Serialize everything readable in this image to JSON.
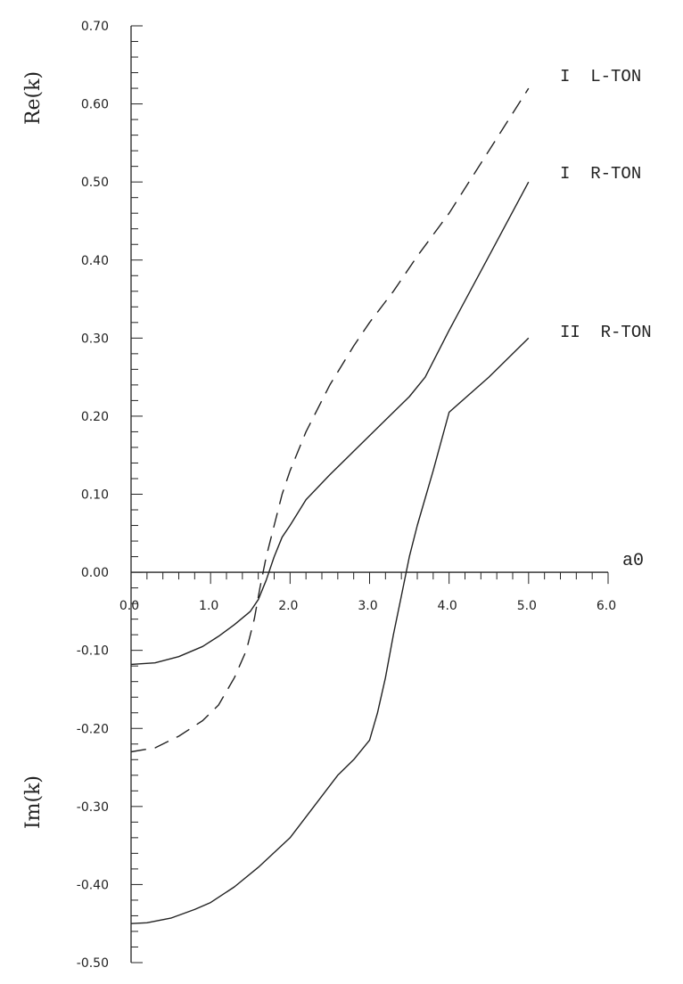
{
  "chart_data": {
    "type": "line",
    "ylabel_top": "Re(k)",
    "ylabel_bottom": "Im(k)",
    "xlabel": "a0",
    "xlim": [
      0,
      6
    ],
    "ylim": [
      -0.5,
      0.7
    ],
    "xticks": [
      "0.0",
      "1.0",
      "2.0",
      "3.0",
      "4.0",
      "5.0",
      "6.0"
    ],
    "yticks": [
      "0.70",
      "0.60",
      "0.50",
      "0.40",
      "0.30",
      "0.20",
      "0.10",
      "0.00",
      "-0.10",
      "-0.20",
      "-0.30",
      "-0.40",
      "-0.50"
    ],
    "grid": false,
    "colors": {
      "line": "#222222",
      "axis": "#222222"
    },
    "series": [
      {
        "name": "I L-TON",
        "style": "dashed",
        "x": [
          0.0,
          0.3,
          0.6,
          0.9,
          1.1,
          1.3,
          1.45,
          1.55,
          1.62,
          1.7,
          1.8,
          1.9,
          2.0,
          2.2,
          2.5,
          2.8,
          3.0,
          3.3,
          3.6,
          4.0,
          4.5,
          5.0
        ],
        "y": [
          -0.23,
          -0.225,
          -0.21,
          -0.19,
          -0.17,
          -0.135,
          -0.1,
          -0.06,
          -0.02,
          0.02,
          0.06,
          0.1,
          0.13,
          0.18,
          0.24,
          0.29,
          0.32,
          0.36,
          0.405,
          0.46,
          0.54,
          0.62
        ]
      },
      {
        "name": "I R-TON",
        "style": "solid",
        "x": [
          0.0,
          0.3,
          0.6,
          0.9,
          1.1,
          1.3,
          1.5,
          1.6,
          1.7,
          1.8,
          1.9,
          2.0,
          2.2,
          2.5,
          2.8,
          3.2,
          3.5,
          3.7,
          4.0,
          4.5,
          5.0
        ],
        "y": [
          -0.118,
          -0.116,
          -0.108,
          -0.095,
          -0.082,
          -0.067,
          -0.05,
          -0.035,
          -0.01,
          0.02,
          0.045,
          0.06,
          0.093,
          0.125,
          0.155,
          0.195,
          0.225,
          0.25,
          0.31,
          0.405,
          0.5
        ]
      },
      {
        "name": "II R-TON",
        "style": "solid",
        "x": [
          0.0,
          0.2,
          0.5,
          0.8,
          1.0,
          1.3,
          1.6,
          2.0,
          2.3,
          2.6,
          2.8,
          3.0,
          3.1,
          3.2,
          3.3,
          3.4,
          3.5,
          3.6,
          3.8,
          4.0,
          4.5,
          5.0
        ],
        "y": [
          -0.45,
          -0.449,
          -0.443,
          -0.432,
          -0.423,
          -0.403,
          -0.378,
          -0.34,
          -0.3,
          -0.26,
          -0.24,
          -0.215,
          -0.18,
          -0.135,
          -0.08,
          -0.03,
          0.02,
          0.06,
          0.13,
          0.205,
          0.25,
          0.3
        ]
      }
    ],
    "legend_labels": [
      "I  L-TON",
      "I  R-TON",
      "II  R-TON"
    ]
  }
}
